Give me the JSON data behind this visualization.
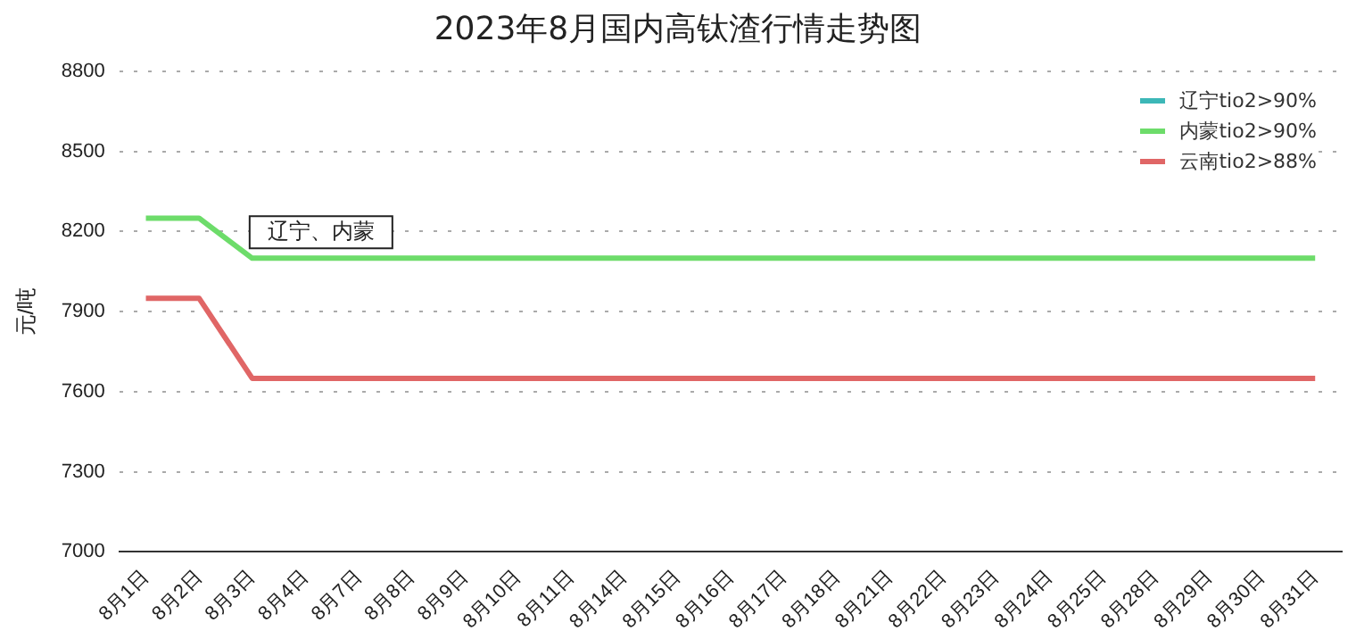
{
  "chart_data": {
    "type": "line",
    "title": "2023年8月国内高钛渣行情走势图",
    "ylabel": "元/吨",
    "categories": [
      "8月1日",
      "8月2日",
      "8月3日",
      "8月4日",
      "8月7日",
      "8月8日",
      "8月9日",
      "8月10日",
      "8月11日",
      "8月14日",
      "8月15日",
      "8月16日",
      "8月17日",
      "8月18日",
      "8月21日",
      "8月22日",
      "8月23日",
      "8月24日",
      "8月25日",
      "8月28日",
      "8月29日",
      "8月30日",
      "8月31日"
    ],
    "series": [
      {
        "name": "辽宁tio2>90%",
        "color": "#3cb7b7",
        "values": [
          null,
          null,
          null,
          null,
          null,
          null,
          null,
          null,
          null,
          null,
          null,
          null,
          null,
          null,
          null,
          null,
          null,
          null,
          null,
          null,
          null,
          null,
          null
        ]
      },
      {
        "name": "内蒙tio2>90%",
        "color": "#6ddc6a",
        "values": [
          8250,
          8250,
          8100,
          8100,
          8100,
          8100,
          8100,
          8100,
          8100,
          8100,
          8100,
          8100,
          8100,
          8100,
          8100,
          8100,
          8100,
          8100,
          8100,
          8100,
          8100,
          8100,
          8100
        ]
      },
      {
        "name": "云南tio2>88%",
        "color": "#e06666",
        "values": [
          7950,
          7950,
          7650,
          7650,
          7650,
          7650,
          7650,
          7650,
          7650,
          7650,
          7650,
          7650,
          7650,
          7650,
          7650,
          7650,
          7650,
          7650,
          7650,
          7650,
          7650,
          7650,
          7650
        ]
      }
    ],
    "ylim": [
      7000,
      8800
    ],
    "yticks": [
      7000,
      7300,
      7600,
      7900,
      8200,
      8500,
      8800
    ],
    "grid": "y",
    "legend": "top right",
    "marker": "none",
    "line_style": "solid",
    "annotations": [
      "辽宁、内蒙"
    ]
  }
}
